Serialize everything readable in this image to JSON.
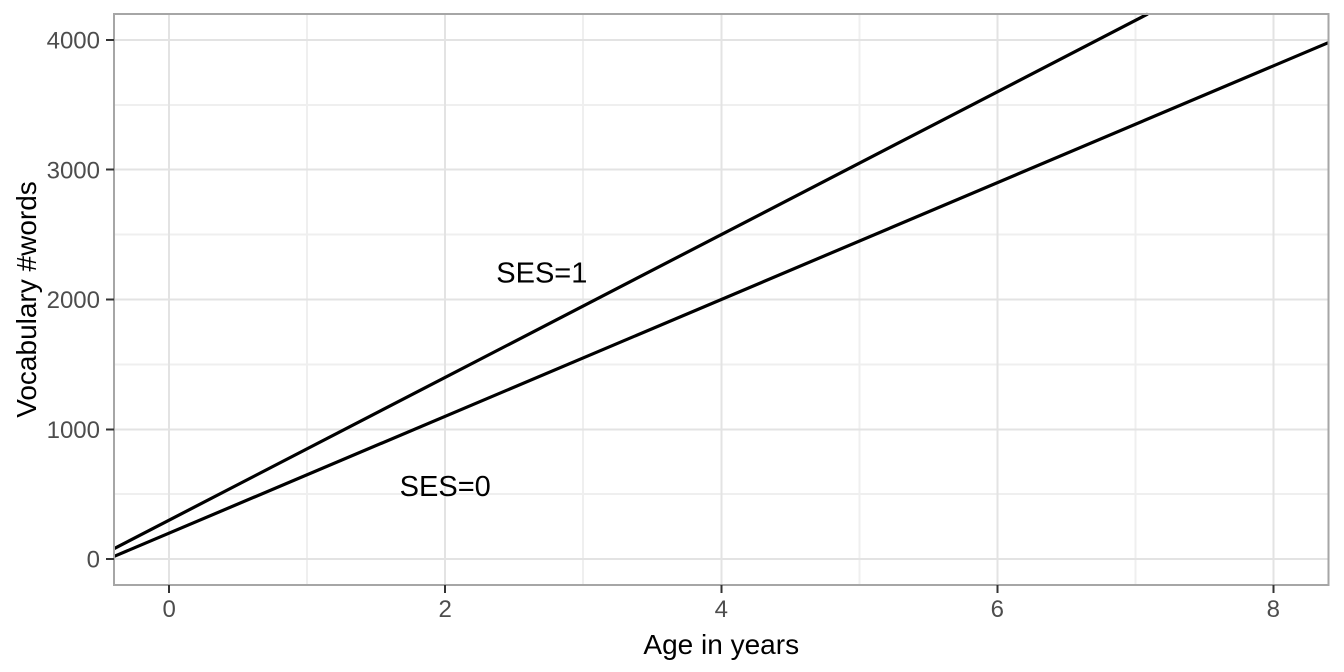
{
  "chart_data": {
    "type": "line",
    "title": "",
    "xlabel": "Age in years",
    "ylabel": "Vocabulary #words",
    "xlim": [
      -0.4,
      8.4
    ],
    "ylim": [
      -200,
      4200
    ],
    "x_ticks": [
      0,
      2,
      4,
      6,
      8
    ],
    "x_minor_ticks": [
      1,
      3,
      5,
      7
    ],
    "y_ticks": [
      0,
      1000,
      2000,
      3000,
      4000
    ],
    "y_minor_ticks": [
      500,
      1500,
      2500,
      3500
    ],
    "grid": true,
    "legend": "none",
    "series": [
      {
        "name": "SES=0",
        "intercept": 200,
        "slope": 450,
        "x": [
          -0.4,
          8.4
        ],
        "values": [
          20,
          3980
        ]
      },
      {
        "name": "SES=1",
        "intercept": 300,
        "slope": 550,
        "x": [
          -0.4,
          7.0909
        ],
        "values": [
          80,
          4200
        ]
      }
    ],
    "annotations": [
      {
        "label": "SES=1",
        "x": 2.7,
        "y": 2210
      },
      {
        "label": "SES=0",
        "x": 2.0,
        "y": 565
      }
    ],
    "style": {
      "background": "#ffffff",
      "panel_border_color": "#a6a6a6",
      "grid_major_color": "#e3e3e3",
      "grid_minor_color": "#efefef",
      "line_color": "#000000",
      "tick_color": "#333333",
      "tick_label_color": "#4d4d4d",
      "axis_title_color": "#000000",
      "annotation_color": "#000000"
    }
  }
}
